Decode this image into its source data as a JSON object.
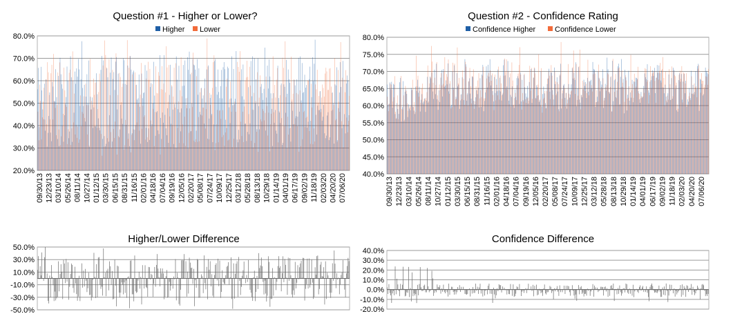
{
  "chart_data": [
    {
      "id": "q1",
      "type": "bar",
      "title": "Question #1 - Higher or Lower?",
      "ylim": [
        0.2,
        0.8
      ],
      "yticks": [
        "20.0%",
        "30.0%",
        "40.0%",
        "50.0%",
        "60.0%",
        "70.0%",
        "80.0%"
      ],
      "ytick_values": [
        0.2,
        0.3,
        0.4,
        0.5,
        0.6,
        0.7,
        0.8
      ],
      "xtick_labels": [
        "09/30/13",
        "12/23/13",
        "03/10/14",
        "05/26/14",
        "08/11/14",
        "10/27/14",
        "01/12/15",
        "03/30/15",
        "06/15/15",
        "08/31/15",
        "11/16/15",
        "02/01/16",
        "04/18/16",
        "07/04/16",
        "09/19/16",
        "12/05/16",
        "02/20/17",
        "05/08/17",
        "07/24/17",
        "10/09/17",
        "12/25/17",
        "03/12/18",
        "05/28/18",
        "08/13/18",
        "10/29/18",
        "01/14/19",
        "04/01/19",
        "06/17/19",
        "09/02/19",
        "11/18/19",
        "02/03/20",
        "04/20/20",
        "07/06/20"
      ],
      "series": [
        {
          "name": "Higher",
          "color": "#1f5fa6"
        },
        {
          "name": "Lower",
          "color": "#f26b3a"
        }
      ],
      "n_points": 360,
      "grid": true,
      "legend": "top"
    },
    {
      "id": "q2",
      "type": "bar",
      "title": "Question #2 - Confidence Rating",
      "ylim": [
        0.4,
        0.8
      ],
      "yticks": [
        "40.0%",
        "45.0%",
        "50.0%",
        "55.0%",
        "60.0%",
        "65.0%",
        "70.0%",
        "75.0%",
        "80.0%"
      ],
      "ytick_values": [
        0.4,
        0.45,
        0.5,
        0.55,
        0.6,
        0.65,
        0.7,
        0.75,
        0.8
      ],
      "xtick_labels": [
        "09/30/13",
        "12/23/13",
        "03/10/14",
        "05/26/14",
        "08/11/14",
        "10/27/14",
        "01/12/15",
        "03/30/15",
        "06/15/15",
        "08/31/15",
        "11/16/15",
        "02/01/16",
        "04/18/16",
        "07/04/16",
        "09/19/16",
        "12/05/16",
        "02/20/17",
        "05/08/17",
        "07/24/17",
        "10/09/17",
        "12/25/17",
        "03/12/18",
        "05/28/18",
        "08/13/18",
        "10/29/18",
        "01/14/19",
        "04/01/19",
        "06/17/19",
        "09/02/19",
        "11/18/19",
        "02/03/20",
        "04/20/20",
        "07/06/20"
      ],
      "series": [
        {
          "name": "Confidence Higher",
          "color": "#1f5fa6"
        },
        {
          "name": "Confidence Lower",
          "color": "#f26b3a"
        }
      ],
      "n_points": 360,
      "grid": true,
      "legend": "top"
    },
    {
      "id": "d1",
      "type": "bar",
      "title": "Higher/Lower Difference",
      "ylim": [
        -0.5,
        0.5
      ],
      "yticks": [
        "-50.0%",
        "-30.0%",
        "-10.0%",
        "10.0%",
        "30.0%",
        "50.0%"
      ],
      "ytick_values": [
        -0.5,
        -0.3,
        -0.1,
        0.1,
        0.3,
        0.5
      ],
      "series": [
        {
          "name": "",
          "color": "#6a6a6a"
        }
      ],
      "n_points": 360,
      "grid": true
    },
    {
      "id": "d2",
      "type": "bar",
      "title": "Confidence Difference",
      "ylim": [
        -0.2,
        0.4
      ],
      "yticks": [
        "-20.0%",
        "-10.0%",
        "0.0%",
        "10.0%",
        "20.0%",
        "30.0%",
        "40.0%"
      ],
      "ytick_values": [
        -0.2,
        -0.1,
        0.0,
        0.1,
        0.2,
        0.3,
        0.4
      ],
      "series": [
        {
          "name": "",
          "color": "#6a6a6a"
        }
      ],
      "n_points": 360,
      "grid": true
    }
  ]
}
